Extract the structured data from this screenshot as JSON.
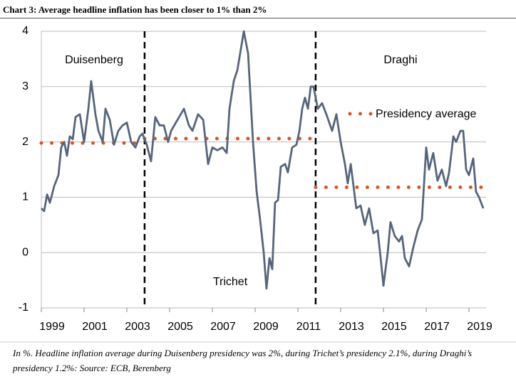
{
  "chart_data": {
    "type": "line",
    "title": "Chart 3: Average headline inflation has been closer to 1% than 2%",
    "note": "In %. Headline inflation average during Duisenberg presidency was 2%, during Trichet’s presidency 2.1%, during Draghi’s presidency 1.2%: Source: ECB, Berenberg",
    "xlim": [
      1999,
      2019.8
    ],
    "ylim": [
      -1,
      4
    ],
    "yticks": [
      -1,
      0,
      1,
      2,
      3,
      4
    ],
    "xticks": [
      1999,
      2001,
      2003,
      2005,
      2007,
      2009,
      2011,
      2013,
      2015,
      2017,
      2019
    ],
    "grid": true,
    "series": [
      {
        "name": "Headline inflation",
        "color": "#57657c",
        "x": [
          1999.0,
          1999.13,
          1999.27,
          1999.4,
          1999.6,
          1999.8,
          1999.93,
          2000.07,
          2000.2,
          2000.33,
          2000.47,
          2000.6,
          2000.8,
          2001.0,
          2001.2,
          2001.33,
          2001.53,
          2001.67,
          2001.87,
          2002.0,
          2002.2,
          2002.4,
          2002.6,
          2002.8,
          2003.0,
          2003.2,
          2003.4,
          2003.6,
          2003.73,
          2003.93,
          2004.13,
          2004.33,
          2004.53,
          2004.73,
          2004.93,
          2005.07,
          2005.67,
          2005.9,
          2006.07,
          2006.33,
          2006.57,
          2006.8,
          2007.0,
          2007.23,
          2007.47,
          2007.67,
          2007.8,
          2008.0,
          2008.17,
          2008.47,
          2008.67,
          2008.9,
          2009.07,
          2009.23,
          2009.4,
          2009.53,
          2009.67,
          2009.8,
          2009.93,
          2010.07,
          2010.2,
          2010.4,
          2010.53,
          2010.73,
          2010.93,
          2011.07,
          2011.2,
          2011.33,
          2011.47,
          2011.6,
          2011.73,
          2011.93,
          2012.13,
          2012.33,
          2012.6,
          2012.8,
          2013.0,
          2013.2,
          2013.33,
          2013.47,
          2013.6,
          2013.73,
          2013.93,
          2014.13,
          2014.33,
          2014.53,
          2014.73,
          2014.87,
          2015.0,
          2015.2,
          2015.33,
          2015.53,
          2015.73,
          2015.87,
          2016.0,
          2016.2,
          2016.4,
          2016.6,
          2016.8,
          2017.0,
          2017.13,
          2017.33,
          2017.53,
          2017.73,
          2017.93,
          2018.07,
          2018.27,
          2018.4,
          2018.6,
          2018.73,
          2018.87,
          2019.0,
          2019.2,
          2019.33,
          2019.47,
          2019.67
        ],
        "values": [
          0.8,
          0.75,
          1.05,
          0.9,
          1.2,
          1.4,
          1.9,
          2.0,
          1.75,
          2.1,
          2.05,
          2.45,
          2.5,
          2.0,
          2.6,
          3.1,
          2.5,
          2.2,
          2.0,
          2.6,
          2.4,
          1.95,
          2.2,
          2.3,
          2.35,
          2.0,
          1.9,
          2.1,
          2.15,
          1.95,
          1.65,
          2.45,
          2.3,
          2.3,
          2.0,
          2.2,
          2.6,
          2.3,
          2.2,
          2.5,
          2.4,
          1.6,
          1.9,
          1.85,
          1.9,
          1.8,
          2.6,
          3.1,
          3.3,
          4.0,
          3.6,
          2.0,
          1.1,
          0.6,
          0.0,
          -0.65,
          -0.1,
          -0.3,
          0.9,
          0.95,
          1.55,
          1.6,
          1.45,
          1.9,
          1.95,
          2.2,
          2.6,
          2.8,
          2.6,
          3.0,
          3.0,
          2.6,
          2.7,
          2.5,
          2.2,
          2.5,
          2.0,
          1.6,
          1.25,
          1.6,
          1.2,
          0.8,
          0.85,
          0.5,
          0.8,
          0.35,
          0.4,
          -0.1,
          -0.6,
          0.0,
          0.55,
          0.3,
          0.2,
          0.3,
          -0.1,
          -0.25,
          0.1,
          0.4,
          0.6,
          1.9,
          1.5,
          1.8,
          1.3,
          1.5,
          1.2,
          1.45,
          2.1,
          2.0,
          2.2,
          2.2,
          1.5,
          1.4,
          1.7,
          1.1,
          1.0,
          0.8
        ]
      }
    ],
    "average_legend": {
      "label": "Presidency average",
      "color": "#d2572d"
    },
    "presidencies": [
      {
        "name": "Duisenberg",
        "start": 1999,
        "end": 2003.83,
        "average": 1.98
      },
      {
        "name": "Trichet",
        "start": 2003.83,
        "end": 2011.83,
        "average": 2.06
      },
      {
        "name": "Draghi",
        "start": 2011.83,
        "end": 2019.67,
        "average": 1.18
      }
    ]
  }
}
